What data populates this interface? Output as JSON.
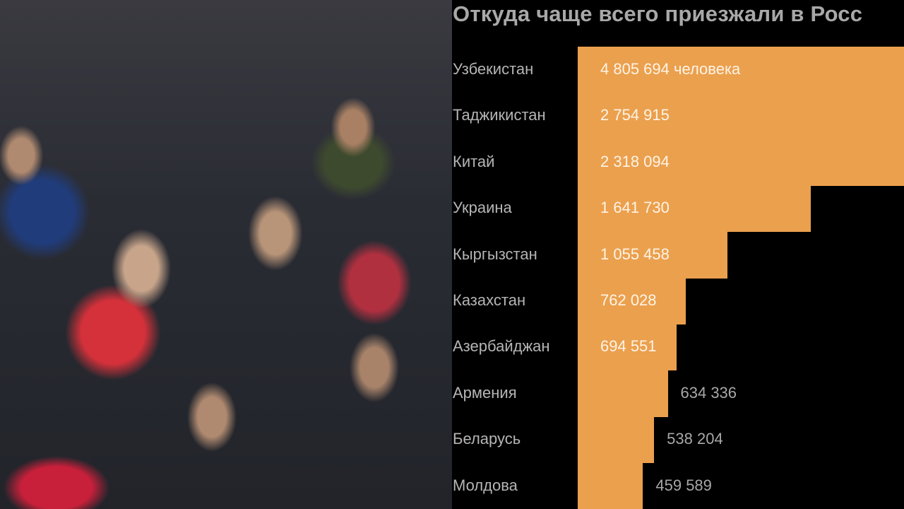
{
  "chart_data": {
    "type": "bar",
    "orientation": "horizontal",
    "title": "Откуда чаще всего приезжали в Росс",
    "categories": [
      "Узбекистан",
      "Таджикистан",
      "Китай",
      "Украина",
      "Кыргызстан",
      "Казахстан",
      "Азербайджан",
      "Армения",
      "Беларусь",
      "Молдова"
    ],
    "values": [
      4805694,
      2754915,
      2318094,
      1641730,
      1055458,
      762028,
      694551,
      634336,
      538204,
      459589
    ],
    "value_labels": [
      "4 805 694 человека",
      "2 754 915",
      "2 318 094",
      "1 641 730",
      "1 055 458",
      "762 028",
      "694 551",
      "634 336",
      "538 204",
      "459 589"
    ],
    "bar_color": "#eba04e",
    "background_color": "#000000",
    "grid": false,
    "legend": "none"
  },
  "photo": {
    "description_icon": "crowd-photo"
  }
}
